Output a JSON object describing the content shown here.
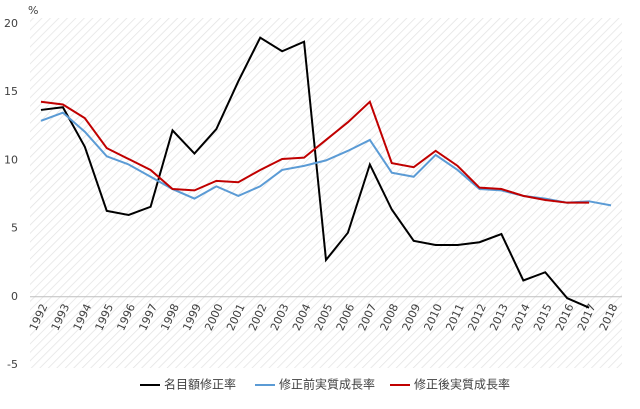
{
  "chart_data": {
    "type": "line",
    "ylabel": "%",
    "categories": [
      "1992",
      "1993",
      "1994",
      "1995",
      "1996",
      "1997",
      "1998",
      "1999",
      "2000",
      "2001",
      "2002",
      "2003",
      "2004",
      "2005",
      "2006",
      "2007",
      "2008",
      "2009",
      "2010",
      "2011",
      "2012",
      "2013",
      "2014",
      "2015",
      "2016",
      "2017",
      "2018"
    ],
    "series": [
      {
        "name": "名目額修正率",
        "color": "#000000",
        "values": [
          13.7,
          13.9,
          11.0,
          6.3,
          6.0,
          6.6,
          12.2,
          10.5,
          12.3,
          15.8,
          19.0,
          18.0,
          18.7,
          2.7,
          4.7,
          9.7,
          6.4,
          4.1,
          3.8,
          3.8,
          4.0,
          4.6,
          1.2,
          1.8,
          -0.1,
          -0.8,
          null
        ]
      },
      {
        "name": "修正前実質成長率",
        "color": "#5b9bd5",
        "values": [
          12.9,
          13.5,
          12.1,
          10.3,
          9.7,
          8.8,
          7.9,
          7.2,
          8.1,
          7.4,
          8.1,
          9.3,
          9.6,
          10.0,
          10.7,
          11.5,
          9.1,
          8.8,
          10.4,
          9.3,
          7.9,
          7.8,
          7.4,
          7.2,
          6.9,
          7.0,
          6.7
        ]
      },
      {
        "name": "修正後実質成長率",
        "color": "#c00000",
        "values": [
          14.3,
          14.1,
          13.1,
          10.9,
          10.1,
          9.3,
          7.9,
          7.8,
          8.5,
          8.4,
          9.3,
          10.1,
          10.2,
          11.5,
          12.8,
          14.3,
          9.8,
          9.5,
          10.7,
          9.6,
          8.0,
          7.9,
          7.4,
          7.1,
          6.9,
          6.9,
          null
        ]
      }
    ],
    "ylim": [
      -5,
      20
    ],
    "yticks": [
      -5,
      0,
      5,
      10,
      15,
      20
    ],
    "grid": false,
    "legend": "bottom"
  }
}
